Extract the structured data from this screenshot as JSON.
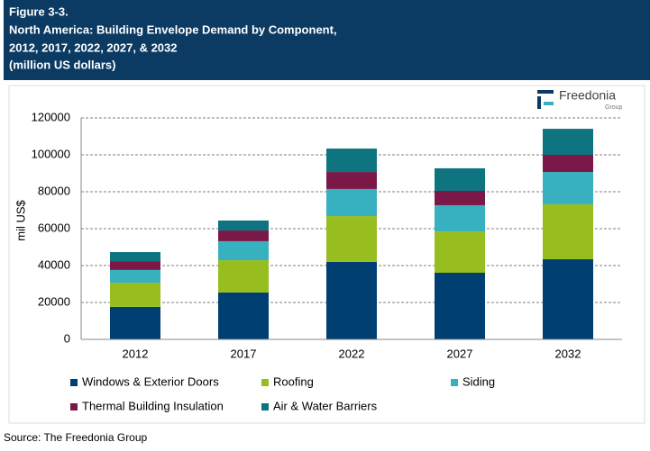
{
  "figure_label": "Figure 3-3.",
  "title_lines": [
    "North America: Building Envelope Demand by Component,",
    "2012, 2017, 2022, 2027, & 2032",
    "(million US dollars)"
  ],
  "logo": {
    "name": "Freedonia",
    "sub": "Group"
  },
  "source": "Source: The Freedonia Group",
  "chart_data": {
    "type": "stacked-bar",
    "ylabel": "mil US$",
    "categories": [
      "2012",
      "2017",
      "2022",
      "2027",
      "2032"
    ],
    "series": [
      {
        "name": "Windows & Exterior Doors",
        "color": "#003f72",
        "values": [
          17600,
          25400,
          42000,
          36100,
          43400
        ]
      },
      {
        "name": "Roofing",
        "color": "#97bd1f",
        "values": [
          13100,
          17500,
          24800,
          22400,
          29800
        ]
      },
      {
        "name": "Siding",
        "color": "#37b0c0",
        "values": [
          6900,
          10300,
          14700,
          14200,
          17500
        ]
      },
      {
        "name": "Thermal Building Insulation",
        "color": "#7a1848",
        "values": [
          4800,
          5800,
          9200,
          7800,
          9300
        ]
      },
      {
        "name": "Air & Water Barriers",
        "color": "#0e7480",
        "values": [
          4900,
          5400,
          12700,
          12200,
          14100
        ]
      }
    ],
    "ylim": [
      0,
      120000
    ],
    "yticks": [
      0,
      20000,
      40000,
      60000,
      80000,
      100000,
      120000
    ],
    "grid": true
  }
}
